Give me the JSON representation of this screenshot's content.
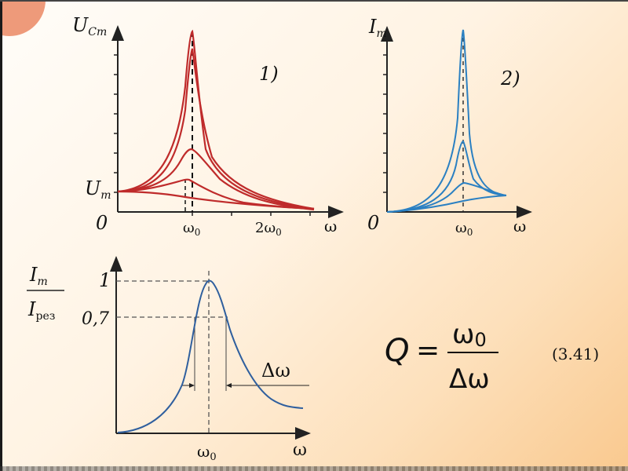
{
  "graph1": {
    "y_axis_label": "U",
    "y_axis_sub": "Cm",
    "marker_label": "1)",
    "um_label": "U",
    "um_sub": "m",
    "origin": "0",
    "x_tick_w0": "ω",
    "x_tick_w0_sub": "0",
    "x_tick_2w0": "2ω",
    "x_tick_2w0_sub": "0",
    "x_axis_label": "ω",
    "curve_color": "#bf2b2b"
  },
  "graph2": {
    "y_axis_label": "I",
    "y_axis_sub": "m",
    "marker_label": "2)",
    "origin": "0",
    "x_tick_w0": "ω",
    "x_tick_w0_sub": "0",
    "x_axis_label": "ω",
    "curve_color": "#2b80c2"
  },
  "graph3": {
    "ratio_top": "I",
    "ratio_top_sub": "m",
    "ratio_bottom": "I",
    "ratio_bottom_sub": "рез",
    "tick_1": "1",
    "tick_07": "0,7",
    "delta_label": "Δω",
    "x_tick_w0": "ω",
    "x_tick_w0_sub": "0",
    "x_axis_label": "ω",
    "curve_color": "#2f5f9e"
  },
  "formula": {
    "lhs": "Q",
    "eq": "=",
    "numerator": "ω",
    "numerator_sub": "0",
    "denominator": "Δω",
    "number": "(3.41)"
  }
}
